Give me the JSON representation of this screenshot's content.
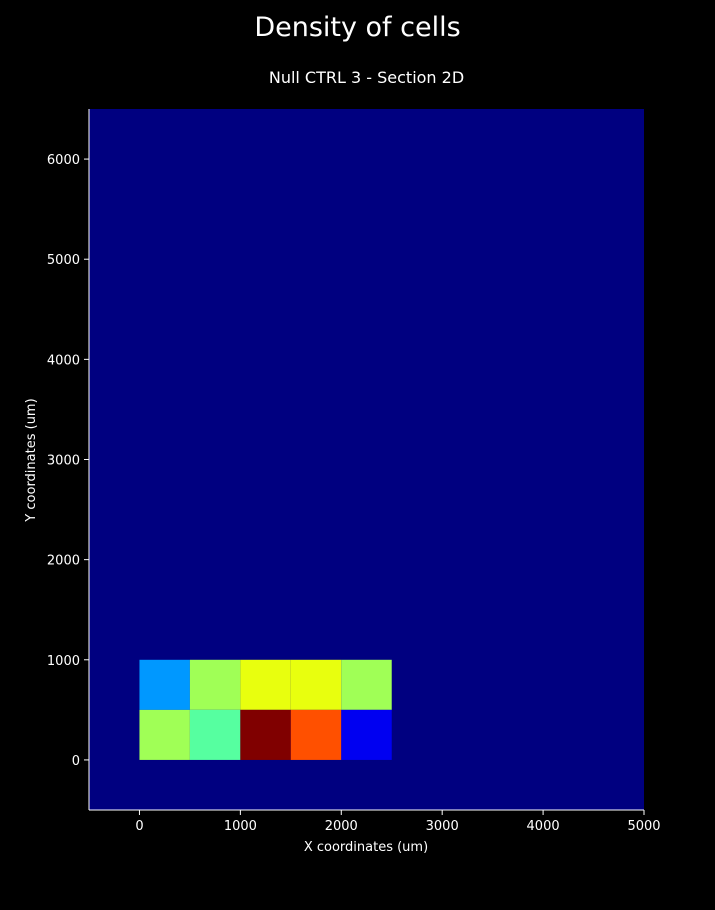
{
  "figure": {
    "title": "Density of cells",
    "background": "#000000",
    "plot_background": "#000080",
    "axis_color": "#ffffff"
  },
  "chart_data": {
    "type": "heatmap",
    "title": "Null CTRL 3 - Section 2D",
    "xlabel": "X coordinates (um)",
    "ylabel": "Y coordinates (um)",
    "xlim": [
      -500,
      5000
    ],
    "ylim": [
      -500,
      6500
    ],
    "xticks": [
      0,
      1000,
      2000,
      3000,
      4000,
      5000
    ],
    "yticks": [
      0,
      1000,
      2000,
      3000,
      4000,
      5000,
      6000
    ],
    "grid": false,
    "colormap": "jet",
    "bin_size": 500,
    "cells": [
      {
        "x": 0,
        "y": 500,
        "color": "#0098ff"
      },
      {
        "x": 500,
        "y": 500,
        "color": "#a0ff56"
      },
      {
        "x": 1000,
        "y": 500,
        "color": "#e8ff0e"
      },
      {
        "x": 1500,
        "y": 500,
        "color": "#e8ff0e"
      },
      {
        "x": 2000,
        "y": 500,
        "color": "#a0ff56"
      },
      {
        "x": 0,
        "y": 0,
        "color": "#a0ff56"
      },
      {
        "x": 500,
        "y": 0,
        "color": "#56ffa0"
      },
      {
        "x": 1000,
        "y": 0,
        "color": "#800000"
      },
      {
        "x": 1500,
        "y": 0,
        "color": "#ff5000"
      },
      {
        "x": 2000,
        "y": 0,
        "color": "#0000f1"
      }
    ]
  }
}
